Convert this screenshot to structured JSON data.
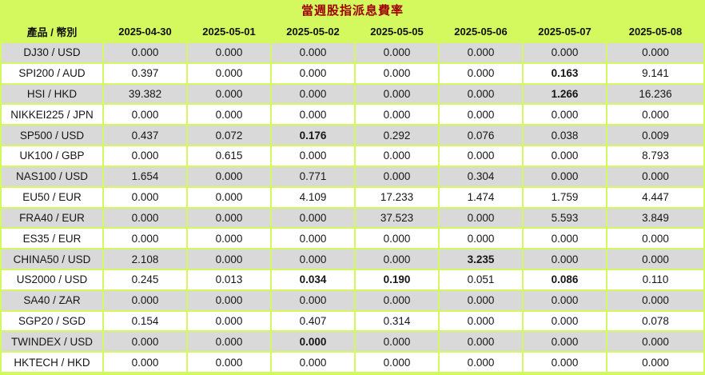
{
  "title": "當週股指派息費率",
  "colors": {
    "background_green": "#d3f95e",
    "shaded_row_gray": "#d9d9d9",
    "plain_row_white": "#ffffff",
    "title_red": "#a00000",
    "text_black": "#161616"
  },
  "table": {
    "product_header": "產品 / 幣別",
    "date_columns": [
      "2025-04-30",
      "2025-05-01",
      "2025-05-02",
      "2025-05-05",
      "2025-05-06",
      "2025-05-07",
      "2025-05-08"
    ],
    "rows": [
      {
        "product": "DJ30 / USD",
        "values": [
          "0.000",
          "0.000",
          "0.000",
          "0.000",
          "0.000",
          "0.000",
          "0.000"
        ],
        "bold": []
      },
      {
        "product": "SPI200 / AUD",
        "values": [
          "0.397",
          "0.000",
          "0.000",
          "0.000",
          "0.000",
          "0.163",
          "9.141"
        ],
        "bold": [
          5
        ]
      },
      {
        "product": "HSI / HKD",
        "values": [
          "39.382",
          "0.000",
          "0.000",
          "0.000",
          "0.000",
          "1.266",
          "16.236"
        ],
        "bold": [
          5
        ]
      },
      {
        "product": "NIKKEI225 / JPN",
        "values": [
          "0.000",
          "0.000",
          "0.000",
          "0.000",
          "0.000",
          "0.000",
          "0.000"
        ],
        "bold": []
      },
      {
        "product": "SP500 / USD",
        "values": [
          "0.437",
          "0.072",
          "0.176",
          "0.292",
          "0.076",
          "0.038",
          "0.009"
        ],
        "bold": [
          2
        ]
      },
      {
        "product": "UK100 / GBP",
        "values": [
          "0.000",
          "0.615",
          "0.000",
          "0.000",
          "0.000",
          "0.000",
          "8.793"
        ],
        "bold": []
      },
      {
        "product": "NAS100 / USD",
        "values": [
          "1.654",
          "0.000",
          "0.771",
          "0.000",
          "0.304",
          "0.000",
          "0.000"
        ],
        "bold": []
      },
      {
        "product": "EU50 / EUR",
        "values": [
          "0.000",
          "0.000",
          "4.109",
          "17.233",
          "1.474",
          "1.759",
          "4.447"
        ],
        "bold": []
      },
      {
        "product": "FRA40 / EUR",
        "values": [
          "0.000",
          "0.000",
          "0.000",
          "37.523",
          "0.000",
          "5.593",
          "3.849"
        ],
        "bold": []
      },
      {
        "product": "ES35 / EUR",
        "values": [
          "0.000",
          "0.000",
          "0.000",
          "0.000",
          "0.000",
          "0.000",
          "0.000"
        ],
        "bold": []
      },
      {
        "product": "CHINA50 / USD",
        "values": [
          "2.108",
          "0.000",
          "0.000",
          "0.000",
          "3.235",
          "0.000",
          "0.000"
        ],
        "bold": [
          4
        ]
      },
      {
        "product": "US2000 / USD",
        "values": [
          "0.245",
          "0.013",
          "0.034",
          "0.190",
          "0.051",
          "0.086",
          "0.110"
        ],
        "bold": [
          2,
          3,
          5
        ]
      },
      {
        "product": "SA40 / ZAR",
        "values": [
          "0.000",
          "0.000",
          "0.000",
          "0.000",
          "0.000",
          "0.000",
          "0.000"
        ],
        "bold": []
      },
      {
        "product": "SGP20 / SGD",
        "values": [
          "0.154",
          "0.000",
          "0.407",
          "0.314",
          "0.000",
          "0.000",
          "0.078"
        ],
        "bold": []
      },
      {
        "product": "TWINDEX / USD",
        "values": [
          "0.000",
          "0.000",
          "0.000",
          "0.000",
          "0.000",
          "0.000",
          "0.000"
        ],
        "bold": [
          2
        ]
      },
      {
        "product": "HKTECH / HKD",
        "values": [
          "0.000",
          "0.000",
          "0.000",
          "0.000",
          "0.000",
          "0.000",
          "0.000"
        ],
        "bold": []
      }
    ]
  }
}
